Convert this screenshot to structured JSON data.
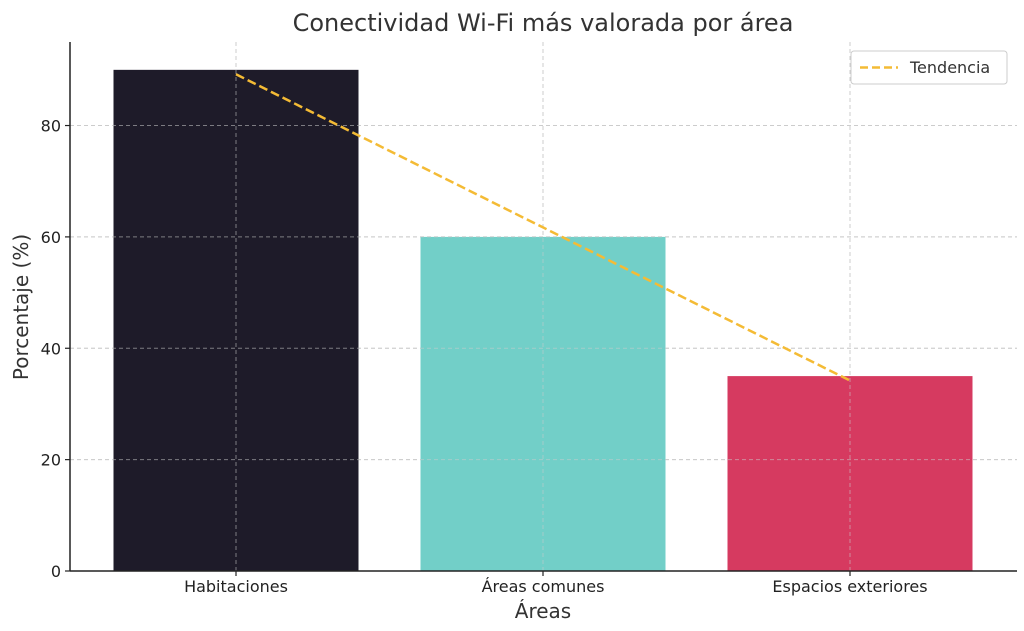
{
  "chart_data": {
    "type": "bar",
    "title": "Conectividad Wi-Fi más valorada por área",
    "xlabel": "Áreas",
    "ylabel": "Porcentaje (%)",
    "categories": [
      "Habitaciones",
      "Áreas comunes",
      "Espacios exteriores"
    ],
    "values": [
      90,
      60,
      35
    ],
    "bar_colors": [
      "#1e1b29",
      "#72cfc8",
      "#d63a60"
    ],
    "trend": {
      "name": "Tendencia",
      "values": [
        89.2,
        61.7,
        34.2
      ],
      "color": "#f4bb35",
      "style": "dashed"
    },
    "ylim": [
      0,
      95
    ],
    "yticks": [
      0,
      20,
      40,
      60,
      80
    ],
    "grid": true,
    "legend_position": "top-right"
  }
}
